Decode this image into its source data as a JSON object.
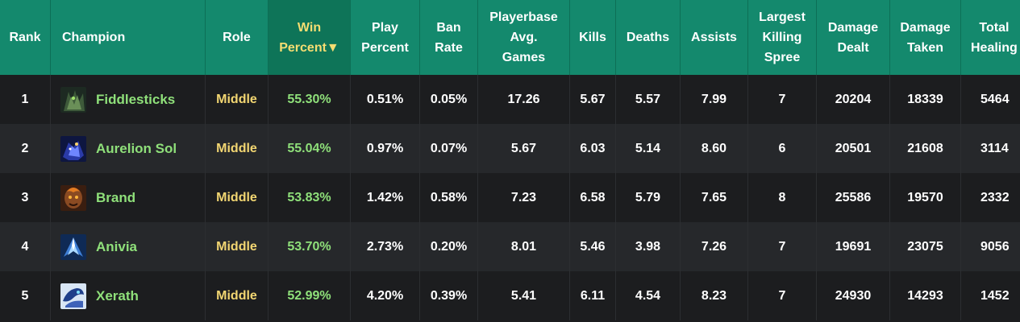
{
  "header": {
    "rank": "Rank",
    "champion": "Champion",
    "role": "Role",
    "win": "Win\nPercent▼",
    "play": "Play\nPercent",
    "ban": "Ban\nRate",
    "games": "Playerbase\nAvg.\nGames",
    "kills": "Kills",
    "deaths": "Deaths",
    "assists": "Assists",
    "spree": "Largest\nKilling\nSpree",
    "dealt": "Damage\nDealt",
    "taken": "Damage\nTaken",
    "healing": "Total\nHealing"
  },
  "rows": [
    {
      "rank": "1",
      "champion": "Fiddlesticks",
      "portrait_icon": "fiddlesticks-portrait-icon",
      "role": "Middle",
      "win": "55.30%",
      "play": "0.51%",
      "ban": "0.05%",
      "games": "17.26",
      "kills": "5.67",
      "deaths": "5.57",
      "assists": "7.99",
      "spree": "7",
      "dealt": "20204",
      "taken": "18339",
      "healing": "5464"
    },
    {
      "rank": "2",
      "champion": "Aurelion Sol",
      "portrait_icon": "aurelion-sol-portrait-icon",
      "role": "Middle",
      "win": "55.04%",
      "play": "0.97%",
      "ban": "0.07%",
      "games": "5.67",
      "kills": "6.03",
      "deaths": "5.14",
      "assists": "8.60",
      "spree": "6",
      "dealt": "20501",
      "taken": "21608",
      "healing": "3114"
    },
    {
      "rank": "3",
      "champion": "Brand",
      "portrait_icon": "brand-portrait-icon",
      "role": "Middle",
      "win": "53.83%",
      "play": "1.42%",
      "ban": "0.58%",
      "games": "7.23",
      "kills": "6.58",
      "deaths": "5.79",
      "assists": "7.65",
      "spree": "8",
      "dealt": "25586",
      "taken": "19570",
      "healing": "2332"
    },
    {
      "rank": "4",
      "champion": "Anivia",
      "portrait_icon": "anivia-portrait-icon",
      "role": "Middle",
      "win": "53.70%",
      "play": "2.73%",
      "ban": "0.20%",
      "games": "8.01",
      "kills": "5.46",
      "deaths": "3.98",
      "assists": "7.26",
      "spree": "7",
      "dealt": "19691",
      "taken": "23075",
      "healing": "9056"
    },
    {
      "rank": "5",
      "champion": "Xerath",
      "portrait_icon": "xerath-portrait-icon",
      "role": "Middle",
      "win": "52.99%",
      "play": "4.20%",
      "ban": "0.39%",
      "games": "5.41",
      "kills": "6.11",
      "deaths": "4.54",
      "assists": "8.23",
      "spree": "7",
      "dealt": "24930",
      "taken": "14293",
      "healing": "1452"
    }
  ],
  "colors": {
    "header_bg": "#14896d",
    "sorted_header_text": "#f5dd72",
    "champion_text": "#8fe07a",
    "role_text": "#f2d672",
    "row_bg_a": "#1c1d1f",
    "row_bg_b": "#26282b"
  }
}
